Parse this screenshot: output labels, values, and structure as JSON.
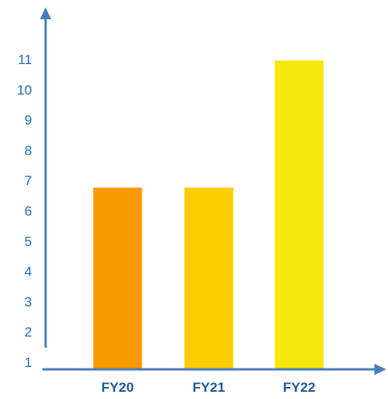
{
  "chart_data": {
    "type": "bar",
    "categories": [
      "FY20",
      "FY21",
      "FY22"
    ],
    "values": [
      7,
      7,
      11.2
    ],
    "colors": [
      "#f99b00",
      "#fdcc00",
      "#f5e60d"
    ],
    "yticks": [
      "1",
      "2",
      "3",
      "4",
      "5",
      "6",
      "7",
      "8",
      "9",
      "10",
      "11"
    ],
    "ylim": [
      1,
      12
    ],
    "grid": false,
    "axis_color": "#4a7ebb",
    "tick_color": "#1f6fb5",
    "category_color": "#1f5a96"
  }
}
